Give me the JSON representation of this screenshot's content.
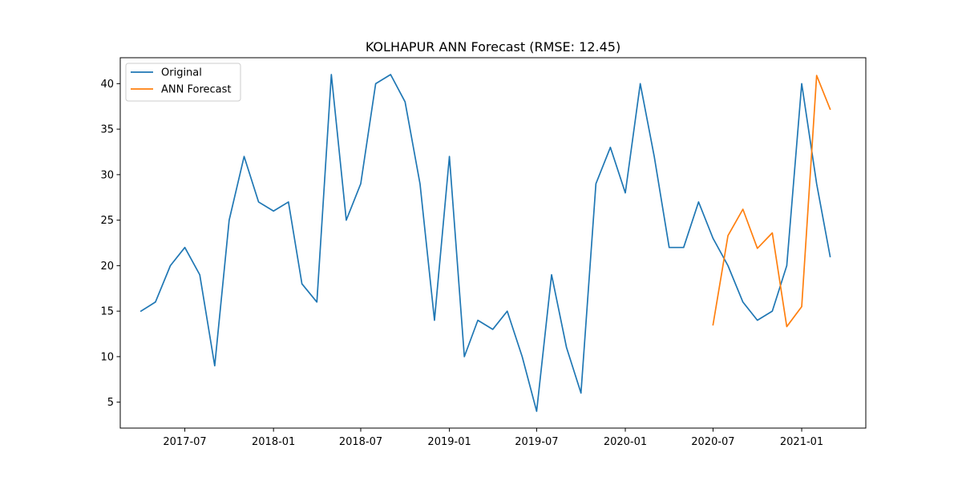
{
  "chart_data": {
    "type": "line",
    "title": "KOLHAPUR ANN Forecast (RMSE: 12.45)",
    "xlabel": "",
    "ylabel": "",
    "x_axis_type": "date-monthly",
    "xlim": [
      "2017-02-17",
      "2021-05-14"
    ],
    "ylim": [
      2.15,
      42.85
    ],
    "x_ticks": [
      "2017-07",
      "2018-01",
      "2018-07",
      "2019-01",
      "2019-07",
      "2020-01",
      "2020-07",
      "2021-01"
    ],
    "y_ticks": [
      5,
      10,
      15,
      20,
      25,
      30,
      35,
      40
    ],
    "grid": false,
    "legend_position": "upper-left",
    "series": [
      {
        "name": "Original",
        "color": "#1f77b4",
        "x": [
          "2017-04",
          "2017-05",
          "2017-06",
          "2017-07",
          "2017-08",
          "2017-09",
          "2017-10",
          "2017-11",
          "2017-12",
          "2018-01",
          "2018-02",
          "2018-03",
          "2018-04",
          "2018-05",
          "2018-06",
          "2018-07",
          "2018-08",
          "2018-09",
          "2018-10",
          "2018-11",
          "2018-12",
          "2019-01",
          "2019-02",
          "2019-03",
          "2019-04",
          "2019-05",
          "2019-06",
          "2019-07",
          "2019-08",
          "2019-09",
          "2019-10",
          "2019-11",
          "2019-12",
          "2020-01",
          "2020-02",
          "2020-03",
          "2020-04",
          "2020-05",
          "2020-06",
          "2020-07",
          "2020-08",
          "2020-09",
          "2020-10",
          "2020-11",
          "2020-12",
          "2021-01",
          "2021-02",
          "2021-03"
        ],
        "y": [
          15,
          16,
          20,
          22,
          19,
          9,
          25,
          32,
          27,
          26,
          27,
          18,
          16,
          41,
          25,
          29,
          40,
          41,
          38,
          29,
          14,
          32,
          10,
          14,
          13,
          15,
          10,
          4,
          19,
          11,
          6,
          29,
          33,
          28,
          40,
          32,
          22,
          22,
          27,
          23,
          20,
          16,
          14,
          15,
          20,
          40,
          29,
          21
        ]
      },
      {
        "name": "ANN Forecast",
        "color": "#ff7f0e",
        "x": [
          "2020-07",
          "2020-08",
          "2020-09",
          "2020-10",
          "2020-11",
          "2020-12",
          "2021-01",
          "2021-02",
          "2021-03"
        ],
        "y": [
          13.5,
          23.3,
          26.2,
          21.9,
          23.6,
          13.3,
          15.5,
          40.9,
          37.2
        ]
      }
    ]
  }
}
